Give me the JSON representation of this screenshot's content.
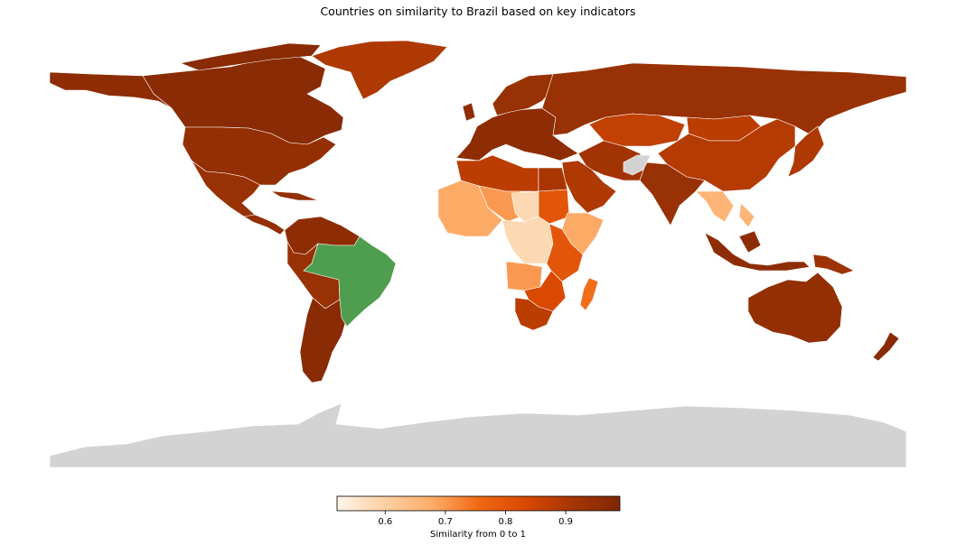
{
  "title": "Countries on similarity to Brazil based on key indicators",
  "colorbar": {
    "label": "Similarity from 0 to 1",
    "min": 0.52,
    "max": 0.99,
    "ticks": [
      "0.6",
      "0.7",
      "0.8",
      "0.9"
    ],
    "tick_values": [
      0.6,
      0.7,
      0.8,
      0.9
    ],
    "colors": [
      "#fff5eb",
      "#fdd0a2",
      "#fdae6b",
      "#f16913",
      "#d94801",
      "#a63603",
      "#7f2704"
    ]
  },
  "colors": {
    "reference_country": "#4f9e4f",
    "no_data": "#d3d3d3",
    "border": "#ffffff"
  },
  "chart_data": {
    "type": "choropleth",
    "reference": "Brazil",
    "regions": [
      {
        "name": "North America",
        "value": 0.96
      },
      {
        "name": "Canada",
        "value": 0.97
      },
      {
        "name": "United States",
        "value": 0.95
      },
      {
        "name": "Mexico",
        "value": 0.94
      },
      {
        "name": "Central America",
        "value": 0.95
      },
      {
        "name": "Greenland",
        "value": 0.9
      },
      {
        "name": "Colombia / Venezuela",
        "value": 0.96
      },
      {
        "name": "Peru / Bolivia",
        "value": 0.94
      },
      {
        "name": "Argentina / Chile",
        "value": 0.97
      },
      {
        "name": "Europe",
        "value": 0.96
      },
      {
        "name": "Scandinavia",
        "value": 0.94
      },
      {
        "name": "Russia",
        "value": 0.94
      },
      {
        "name": "Kazakhstan",
        "value": 0.87
      },
      {
        "name": "Mongolia",
        "value": 0.88
      },
      {
        "name": "China",
        "value": 0.89
      },
      {
        "name": "India",
        "value": 0.9
      },
      {
        "name": "Japan",
        "value": 0.94
      },
      {
        "name": "Southeast Asia",
        "value": 0.92
      },
      {
        "name": "Indonesia",
        "value": 0.9
      },
      {
        "name": "Papua New Guinea",
        "value": 0.66
      },
      {
        "name": "Australia",
        "value": 0.96
      },
      {
        "name": "New Zealand",
        "value": 0.93
      },
      {
        "name": "Algeria / Libya",
        "value": 0.95
      },
      {
        "name": "Egypt",
        "value": 0.97
      },
      {
        "name": "Saudi Arabia",
        "value": 0.88
      },
      {
        "name": "Iran",
        "value": 0.91
      },
      {
        "name": "Afghanistan",
        "value": null
      },
      {
        "name": "Sahel",
        "value": 0.7
      },
      {
        "name": "West Africa",
        "value": 0.68
      },
      {
        "name": "Niger / Chad",
        "value": 0.58
      },
      {
        "name": "Sudan",
        "value": 0.8
      },
      {
        "name": "Ethiopia",
        "value": 0.68
      },
      {
        "name": "DR Congo",
        "value": 0.58
      },
      {
        "name": "East Africa",
        "value": 0.8
      },
      {
        "name": "Angola",
        "value": 0.7
      },
      {
        "name": "Southern Africa",
        "value": 0.83
      },
      {
        "name": "South Africa",
        "value": 0.88
      },
      {
        "name": "Madagascar",
        "value": 0.75
      },
      {
        "name": "Brazil",
        "value": null
      },
      {
        "name": "Antarctica",
        "value": null
      }
    ]
  }
}
